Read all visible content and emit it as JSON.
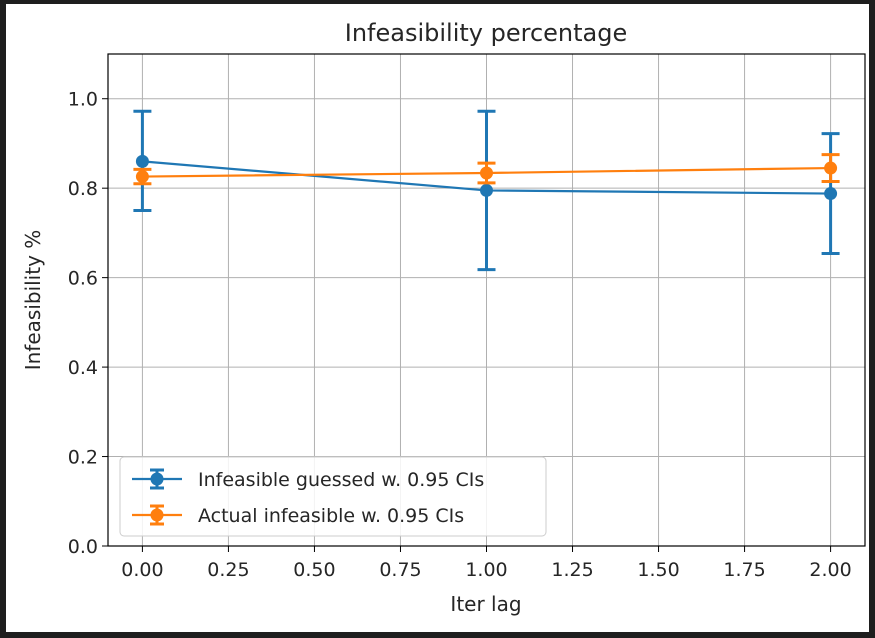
{
  "chart_data": {
    "type": "line",
    "title": "Infeasibility percentage",
    "xlabel": "Iter lag",
    "ylabel": "Infeasibility %",
    "xlim": [
      -0.1,
      2.1
    ],
    "ylim": [
      0.0,
      1.1
    ],
    "xticks": [
      "0.00",
      "0.25",
      "0.50",
      "0.75",
      "1.00",
      "1.25",
      "1.50",
      "1.75",
      "2.00"
    ],
    "xtick_values": [
      0,
      0.25,
      0.5,
      0.75,
      1.0,
      1.25,
      1.5,
      1.75,
      2.0
    ],
    "yticks": [
      "0.0",
      "0.2",
      "0.4",
      "0.6",
      "0.8",
      "1.0"
    ],
    "ytick_values": [
      0,
      0.2,
      0.4,
      0.6,
      0.8,
      1.0
    ],
    "grid": true,
    "legend_position": "lower-left",
    "x": [
      0,
      1,
      2
    ],
    "series": [
      {
        "name": "Infeasible guessed w. 0.95 CIs",
        "color": "#1f77b4",
        "values": [
          0.86,
          0.795,
          0.788
        ],
        "ci_lower": [
          0.75,
          0.618,
          0.654
        ],
        "ci_upper": [
          0.972,
          0.972,
          0.922
        ]
      },
      {
        "name": "Actual infeasible w. 0.95 CIs",
        "color": "#ff7f0e",
        "values": [
          0.826,
          0.834,
          0.845
        ],
        "ci_lower": [
          0.81,
          0.812,
          0.815
        ],
        "ci_upper": [
          0.842,
          0.856,
          0.875
        ]
      }
    ]
  }
}
